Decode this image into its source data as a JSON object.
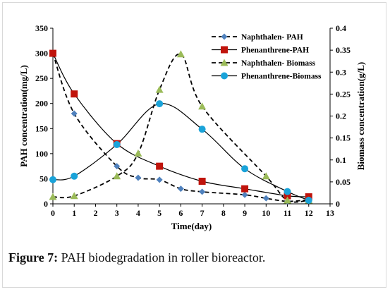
{
  "chart_data": {
    "type": "line",
    "xlabel": "Time(day)",
    "ylabel_left": "PAH concentration(mg/L)",
    "ylabel_right": "Biomass concentration(g/L)",
    "xlim": [
      0,
      13
    ],
    "ylim_left": [
      0,
      350
    ],
    "ylim_right": [
      0,
      0.4
    ],
    "x_ticks": [
      0,
      1,
      2,
      3,
      4,
      5,
      6,
      7,
      8,
      9,
      10,
      11,
      12,
      13
    ],
    "y_left_ticks": [
      0,
      50,
      100,
      150,
      200,
      250,
      300,
      350
    ],
    "y_right_ticks": [
      "0",
      "0.05",
      "0.1",
      "0.15",
      "0.2",
      "0.25",
      "0.3",
      "0.35",
      "0.4"
    ],
    "legend_position": "top-right",
    "grid": false,
    "series": [
      {
        "name": "Naphthalen- PAH",
        "axis": "left",
        "line": "dashed",
        "marker": "diamond",
        "color": "#4f81bd",
        "x": [
          0,
          1,
          3,
          4,
          5,
          6,
          7,
          9,
          10,
          11,
          12
        ],
        "y": [
          300,
          180,
          75,
          52,
          48,
          30,
          24,
          18,
          11,
          5,
          8
        ]
      },
      {
        "name": "Phenanthrene-PAH",
        "axis": "left",
        "line": "solid",
        "marker": "square",
        "color": "#c0140c",
        "x": [
          0,
          1,
          3,
          5,
          7,
          9,
          11,
          12
        ],
        "y": [
          300,
          219,
          120,
          75,
          45,
          30,
          16,
          14
        ]
      },
      {
        "name": "Naphthalen- Biomass",
        "axis": "right",
        "line": "dashed",
        "marker": "triangle",
        "color": "#9bbb59",
        "x": [
          0,
          1,
          3,
          4,
          5,
          6,
          7,
          10,
          11,
          12
        ],
        "y": [
          0.016,
          0.018,
          0.063,
          0.115,
          0.26,
          0.341,
          0.222,
          0.063,
          0.008,
          0.008
        ]
      },
      {
        "name": "Phenanthrene-Biomass",
        "axis": "right",
        "line": "solid",
        "marker": "circle",
        "color": "#1aa3d9",
        "x": [
          0,
          1,
          3,
          5,
          7,
          9,
          11,
          12
        ],
        "y": [
          0.055,
          0.063,
          0.135,
          0.228,
          0.17,
          0.08,
          0.028,
          0.008
        ]
      }
    ]
  },
  "caption": {
    "label": "Figure 7:",
    "text": " PAH biodegradation in roller bioreactor."
  }
}
